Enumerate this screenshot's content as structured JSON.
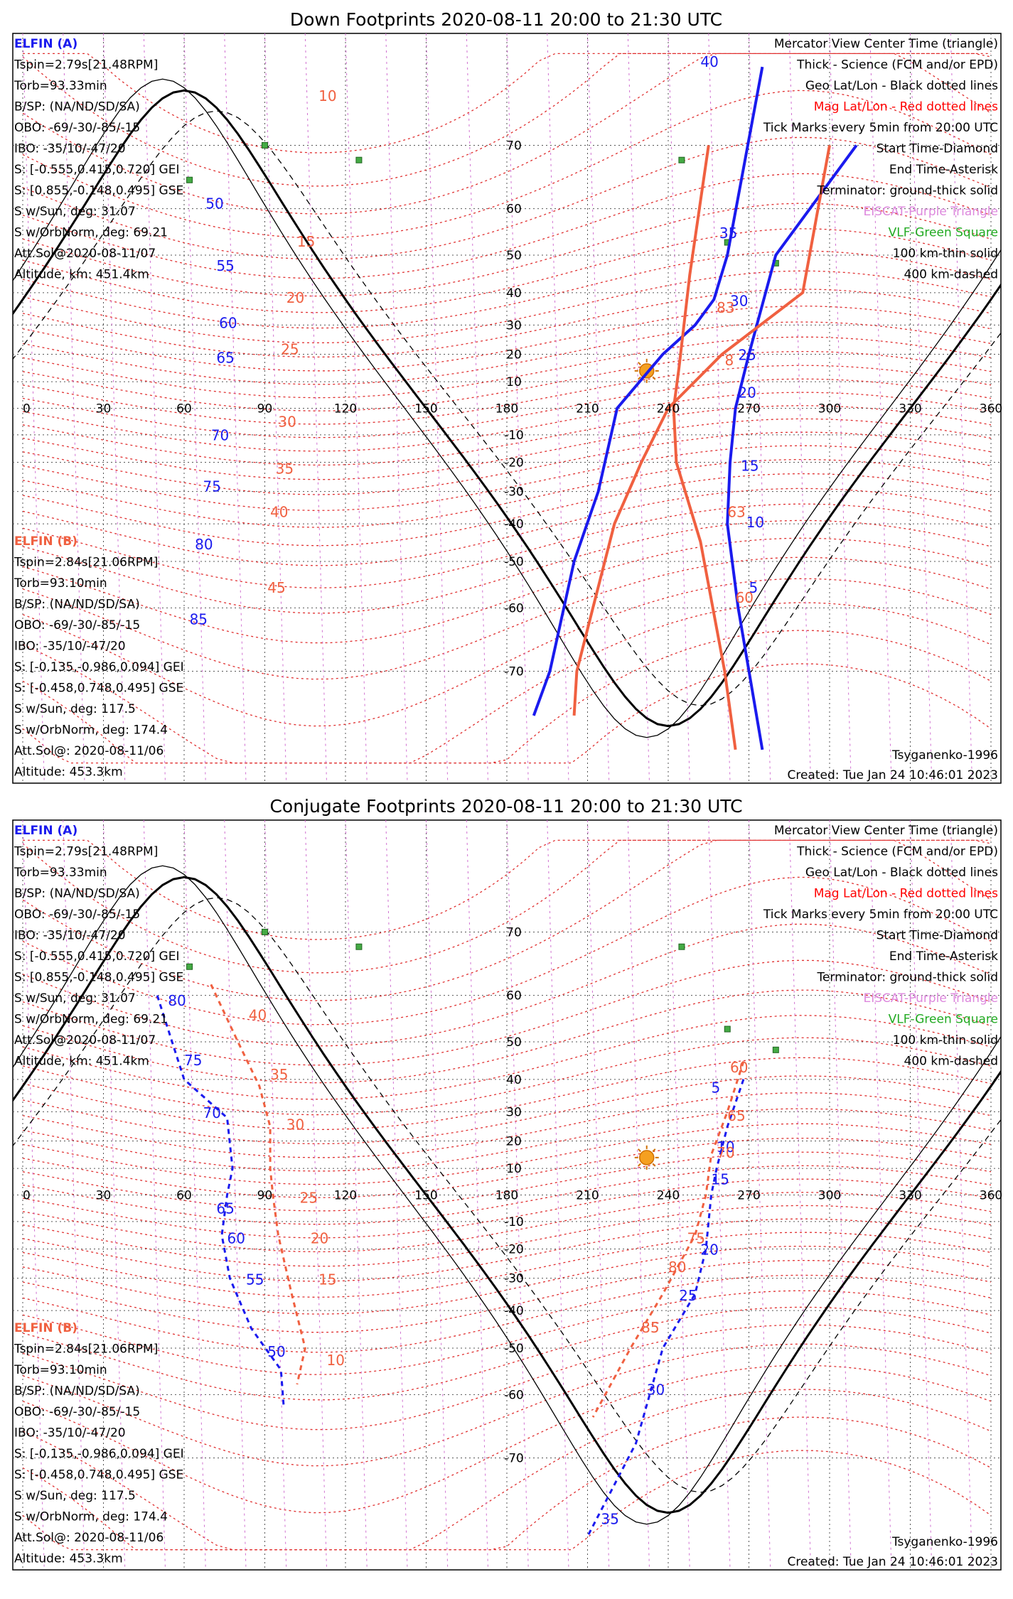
{
  "panels": [
    {
      "id": "down",
      "title": "Down Footprints 2020-08-11 20:00 to 21:30 UTC",
      "ylabels": [
        "70",
        "60",
        "50",
        "40",
        "30",
        "20",
        "10",
        "-10",
        "-20",
        "-30",
        "-40",
        "-50",
        "-60",
        "-70"
      ],
      "xlabels": [
        "0",
        "30",
        "60",
        "90",
        "120",
        "150",
        "180",
        "210",
        "240",
        "270",
        "300",
        "330",
        "360"
      ],
      "elfin_a_label": "ELFIN (A)",
      "elfin_a_lines": [
        "Tspin=2.79s[21.48RPM]",
        "Torb=93.33min",
        "B/SP: (NA/ND/SD/SA)",
        "OBO: -69/-30/-85/-15",
        "IBO: -35/10/-47/20",
        "S: [-0.555,0.415,0.720] GEI",
        "S: [0.855,-0.148,0.495] GSE",
        "S w/Sun, deg: 31.07",
        "S w/OrbNorm, deg: 69.21",
        "Att.Sol@2020-08-11/07",
        "Altitude, km: 451.4km"
      ],
      "elfin_b_label": "ELFIN (B)",
      "elfin_b_lines": [
        "Tspin=2.84s[21.06RPM]",
        "Torb=93.10min",
        "B/SP: (NA/ND/SD/SA)",
        "OBO: -69/-30/-85/-15",
        "IBO: -35/10/-47/20",
        "S: [-0.135,-0.986,0.094] GEI",
        "S: [-0.458,0.748,0.495] GSE",
        "S w/Sun, deg: 117.5",
        "S w/OrbNorm, deg: 174.4",
        "Att.Sol@: 2020-08-11/06",
        "Altitude: 453.3km"
      ],
      "legend": [
        "Mercator View Center Time (triangle)",
        "Thick - Science (FCM and/or EPD)",
        "Geo Lat/Lon - Black dotted lines",
        "Mag Lat/Lon - Red dotted lines",
        "Tick Marks every 5min from 20:00 UTC",
        "Start Time-Diamond",
        "End Time-Asterisk",
        "Terminator: ground-thick solid",
        "EISCAT-Purple Triangle",
        "VLF-Green Square",
        "100 km-thin solid",
        "400 km-dashed"
      ],
      "legend_colors": [
        "#000000",
        "#000000",
        "#000000",
        "#ff0000",
        "#000000",
        "#000000",
        "#000000",
        "#000000",
        "#dd88dd",
        "#22aa22",
        "#000000",
        "#000000"
      ],
      "model": "Tsyganenko-1996",
      "created": "Created: Tue Jan 24 10:46:01 2023",
      "a_track": [
        [
          275,
          78
        ],
        [
          262,
          50
        ],
        [
          257,
          38
        ],
        [
          250,
          30
        ],
        [
          238,
          20
        ],
        [
          221,
          0
        ],
        [
          214,
          -30
        ],
        [
          205,
          -50
        ],
        [
          196,
          -70
        ],
        [
          190,
          -75
        ]
      ],
      "a_track_east": [
        [
          310,
          70
        ],
        [
          280,
          50
        ],
        [
          270,
          20
        ],
        [
          265,
          0
        ],
        [
          263,
          -20
        ],
        [
          262,
          -40
        ],
        [
          266,
          -60
        ],
        [
          275,
          -78
        ]
      ],
      "b_track": [
        [
          300,
          70
        ],
        [
          290,
          40
        ],
        [
          260,
          20
        ],
        [
          240,
          0
        ],
        [
          230,
          -20
        ],
        [
          220,
          -40
        ],
        [
          212,
          -60
        ],
        [
          206,
          -70
        ],
        [
          205,
          -75
        ]
      ],
      "b_track_east": [
        [
          255,
          70
        ],
        [
          248,
          45
        ],
        [
          244,
          15
        ],
        [
          242,
          0
        ],
        [
          243,
          -20
        ],
        [
          252,
          -45
        ],
        [
          261,
          -70
        ],
        [
          265,
          -78
        ]
      ],
      "a_ticks": [
        {
          "t": "50",
          "lon": 68,
          "lat": 60
        },
        {
          "t": "55",
          "lon": 72,
          "lat": 46
        },
        {
          "t": "60",
          "lon": 73,
          "lat": 29
        },
        {
          "t": "65",
          "lon": 72,
          "lat": 17
        },
        {
          "t": "70",
          "lon": 70,
          "lat": -12
        },
        {
          "t": "75",
          "lon": 67,
          "lat": -30
        },
        {
          "t": "80",
          "lon": 64,
          "lat": -47
        },
        {
          "t": "85",
          "lon": 62,
          "lat": -63
        },
        {
          "t": "40",
          "lon": 252,
          "lat": 78
        },
        {
          "t": "35",
          "lon": 259,
          "lat": 54
        },
        {
          "t": "30",
          "lon": 263,
          "lat": 36
        },
        {
          "t": "25",
          "lon": 266,
          "lat": 18
        },
        {
          "t": "20",
          "lon": 266,
          "lat": 4
        },
        {
          "t": "15",
          "lon": 267,
          "lat": -23
        },
        {
          "t": "10",
          "lon": 269,
          "lat": -41
        },
        {
          "t": "5",
          "lon": 270,
          "lat": -57
        }
      ],
      "b_ticks": [
        {
          "t": "10",
          "lon": 110,
          "lat": 75
        },
        {
          "t": "15",
          "lon": 102,
          "lat": 52
        },
        {
          "t": "20",
          "lon": 98,
          "lat": 37
        },
        {
          "t": "25",
          "lon": 96,
          "lat": 20
        },
        {
          "t": "30",
          "lon": 95,
          "lat": -7
        },
        {
          "t": "35",
          "lon": 94,
          "lat": -24
        },
        {
          "t": "40",
          "lon": 92,
          "lat": -38
        },
        {
          "t": "45",
          "lon": 91,
          "lat": -57
        },
        {
          "t": "83",
          "lon": 258,
          "lat": 34
        },
        {
          "t": "8",
          "lon": 261,
          "lat": 16
        },
        {
          "t": "63",
          "lon": 262,
          "lat": -38
        },
        {
          "t": "60",
          "lon": 265,
          "lat": -59
        }
      ]
    },
    {
      "id": "conj",
      "title": "Conjugate Footprints 2020-08-11 20:00 to 21:30 UTC",
      "ylabels": [
        "70",
        "60",
        "50",
        "40",
        "30",
        "20",
        "10",
        "-10",
        "-20",
        "-30",
        "-40",
        "-50",
        "-60",
        "-70"
      ],
      "xlabels": [
        "0",
        "30",
        "60",
        "90",
        "120",
        "150",
        "180",
        "210",
        "240",
        "270",
        "300",
        "330",
        "360"
      ],
      "elfin_a_label": "ELFIN (A)",
      "elfin_a_lines": [
        "Tspin=2.79s[21.48RPM]",
        "Torb=93.33min",
        "B/SP: (NA/ND/SD/SA)",
        "OBO: -69/-30/-85/-15",
        "IBO: -35/10/-47/20",
        "S: [-0.555,0.415,0.720] GEI",
        "S: [0.855,-0.148,0.495] GSE",
        "S w/Sun, deg: 31.07",
        "S w/OrbNorm, deg: 69.21",
        "Att.Sol@2020-08-11/07",
        "Altitude, km: 451.4km"
      ],
      "elfin_b_label": "ELFIN (B)",
      "elfin_b_lines": [
        "Tspin=2.84s[21.06RPM]",
        "Torb=93.10min",
        "B/SP: (NA/ND/SD/SA)",
        "OBO: -69/-30/-85/-15",
        "IBO: -35/10/-47/20",
        "S: [-0.135,-0.986,0.094] GEI",
        "S: [-0.458,0.748,0.495] GSE",
        "S w/Sun, deg: 117.5",
        "S w/OrbNorm, deg: 174.4",
        "Att.Sol@: 2020-08-11/06",
        "Altitude: 453.3km"
      ],
      "legend": [
        "Mercator View Center Time (triangle)",
        "Thick - Science (FCM and/or EPD)",
        "Geo Lat/Lon - Black dotted lines",
        "Mag Lat/Lon - Red dotted lines",
        "Tick Marks every 5min from 20:00 UTC",
        "Start Time-Diamond",
        "End Time-Asterisk",
        "Terminator: ground-thick solid",
        "EISCAT-Purple Triangle",
        "VLF-Green Square",
        "100 km-thin solid",
        "400 km-dashed"
      ],
      "legend_colors": [
        "#000000",
        "#000000",
        "#000000",
        "#ff0000",
        "#000000",
        "#000000",
        "#000000",
        "#000000",
        "#dd88dd",
        "#22aa22",
        "#000000",
        "#000000"
      ],
      "model": "Tsyganenko-1996",
      "created": "Created: Tue Jan 24 10:46:01 2023",
      "a_track": [
        [
          50,
          60
        ],
        [
          60,
          40
        ],
        [
          76,
          28
        ],
        [
          78,
          10
        ],
        [
          76,
          0
        ],
        [
          74,
          -15
        ],
        [
          77,
          -30
        ],
        [
          85,
          -45
        ],
        [
          96,
          -55
        ],
        [
          97,
          -62
        ]
      ],
      "a_track_east": [
        [
          268,
          40
        ],
        [
          262,
          25
        ],
        [
          258,
          10
        ],
        [
          256,
          0
        ],
        [
          254,
          -20
        ],
        [
          250,
          -35
        ],
        [
          238,
          -50
        ],
        [
          228,
          -68
        ],
        [
          210,
          -78
        ]
      ],
      "b_track": [
        [
          70,
          62
        ],
        [
          80,
          50
        ],
        [
          88,
          38
        ],
        [
          92,
          25
        ],
        [
          92,
          10
        ],
        [
          93,
          0
        ],
        [
          95,
          -15
        ],
        [
          100,
          -35
        ],
        [
          105,
          -50
        ],
        [
          102,
          -58
        ]
      ],
      "b_track_east": [
        [
          268,
          45
        ],
        [
          262,
          30
        ],
        [
          256,
          15
        ],
        [
          254,
          0
        ],
        [
          250,
          -15
        ],
        [
          238,
          -35
        ],
        [
          226,
          -50
        ],
        [
          212,
          -64
        ]
      ],
      "a_ticks": [
        {
          "t": "80",
          "lon": 54,
          "lat": 58
        },
        {
          "t": "75",
          "lon": 60,
          "lat": 44
        },
        {
          "t": "70",
          "lon": 67,
          "lat": 28
        },
        {
          "t": "65",
          "lon": 72,
          "lat": -7
        },
        {
          "t": "60",
          "lon": 76,
          "lat": -18
        },
        {
          "t": "55",
          "lon": 83,
          "lat": -32
        },
        {
          "t": "50",
          "lon": 91,
          "lat": -52
        },
        {
          "t": "5",
          "lon": 256,
          "lat": 36
        },
        {
          "t": "10",
          "lon": 258,
          "lat": 16
        },
        {
          "t": "15",
          "lon": 256,
          "lat": 4
        },
        {
          "t": "20",
          "lon": 252,
          "lat": -22
        },
        {
          "t": "25",
          "lon": 244,
          "lat": -37
        },
        {
          "t": "30",
          "lon": 232,
          "lat": -60
        },
        {
          "t": "35",
          "lon": 215,
          "lat": -77
        }
      ],
      "b_ticks": [
        {
          "t": "40",
          "lon": 84,
          "lat": 55
        },
        {
          "t": "35",
          "lon": 92,
          "lat": 40
        },
        {
          "t": "30",
          "lon": 98,
          "lat": 24
        },
        {
          "t": "25",
          "lon": 103,
          "lat": -3
        },
        {
          "t": "20",
          "lon": 107,
          "lat": -18
        },
        {
          "t": "15",
          "lon": 110,
          "lat": -32
        },
        {
          "t": "10",
          "lon": 113,
          "lat": -54
        },
        {
          "t": "60",
          "lon": 263,
          "lat": 42
        },
        {
          "t": "65",
          "lon": 262,
          "lat": 27
        },
        {
          "t": "70",
          "lon": 258,
          "lat": 14
        },
        {
          "t": "75",
          "lon": 247,
          "lat": -18
        },
        {
          "t": "80",
          "lon": 240,
          "lat": -28
        },
        {
          "t": "85",
          "lon": 230,
          "lat": -46
        }
      ]
    }
  ]
}
